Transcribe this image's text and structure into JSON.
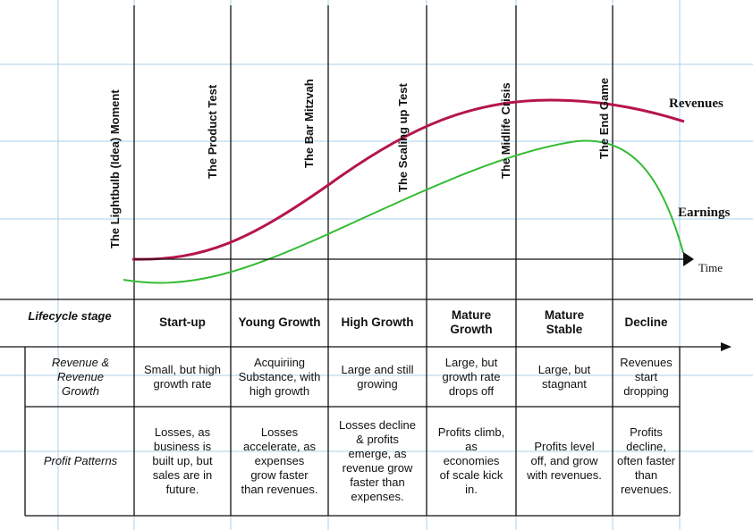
{
  "colors": {
    "revenue_curve": "#b5154b",
    "earnings_curve": "#33bb33",
    "grid": "#aad0ea",
    "lines": "#111111"
  },
  "milestones": [
    "The Lightbulb (Idea) Moment",
    "The Product Test",
    "The Bar Mitzvah",
    "The Scaling up Test",
    "The Midlife Crisis",
    "The End Game"
  ],
  "curve_labels": {
    "revenues": "Revenues",
    "earnings": "Earnings",
    "time": "Time"
  },
  "table": {
    "stage_header": "Lifecycle stage",
    "stages": [
      [
        "Start-up"
      ],
      [
        "Young Growth"
      ],
      [
        "High Growth"
      ],
      [
        "Mature",
        "Growth"
      ],
      [
        "Mature",
        "Stable"
      ],
      [
        "Decline"
      ]
    ],
    "revenue_header": [
      "Revenue &",
      "Revenue",
      "Growth"
    ],
    "revenue_growth": [
      [
        "Small, but high",
        "growth rate"
      ],
      [
        "Acquiriing",
        "Substance, with",
        "high growth"
      ],
      [
        "Large and still",
        "growing"
      ],
      [
        "Large, but",
        "growth rate",
        "drops off"
      ],
      [
        "Large, but",
        "stagnant"
      ],
      [
        "Revenues",
        "start dropping"
      ]
    ],
    "profit_header": [
      "Profit Patterns"
    ],
    "profit_patterns": [
      [
        "Losses, as",
        "business is",
        "built up, but",
        "sales are in",
        "future."
      ],
      [
        "Losses",
        "accelerate, as",
        "expenses",
        "grow faster",
        "than revenues."
      ],
      [
        "Losses decline",
        "& profits",
        "emerge, as",
        "revenue grow",
        "faster than",
        "expenses."
      ],
      [
        "Profits climb,",
        "as",
        "economies",
        "of scale kick",
        "in."
      ],
      [
        "Profits level",
        "off, and grow",
        "with revenues."
      ],
      [
        "Profits decline,",
        "often faster",
        "than revenues."
      ]
    ]
  }
}
